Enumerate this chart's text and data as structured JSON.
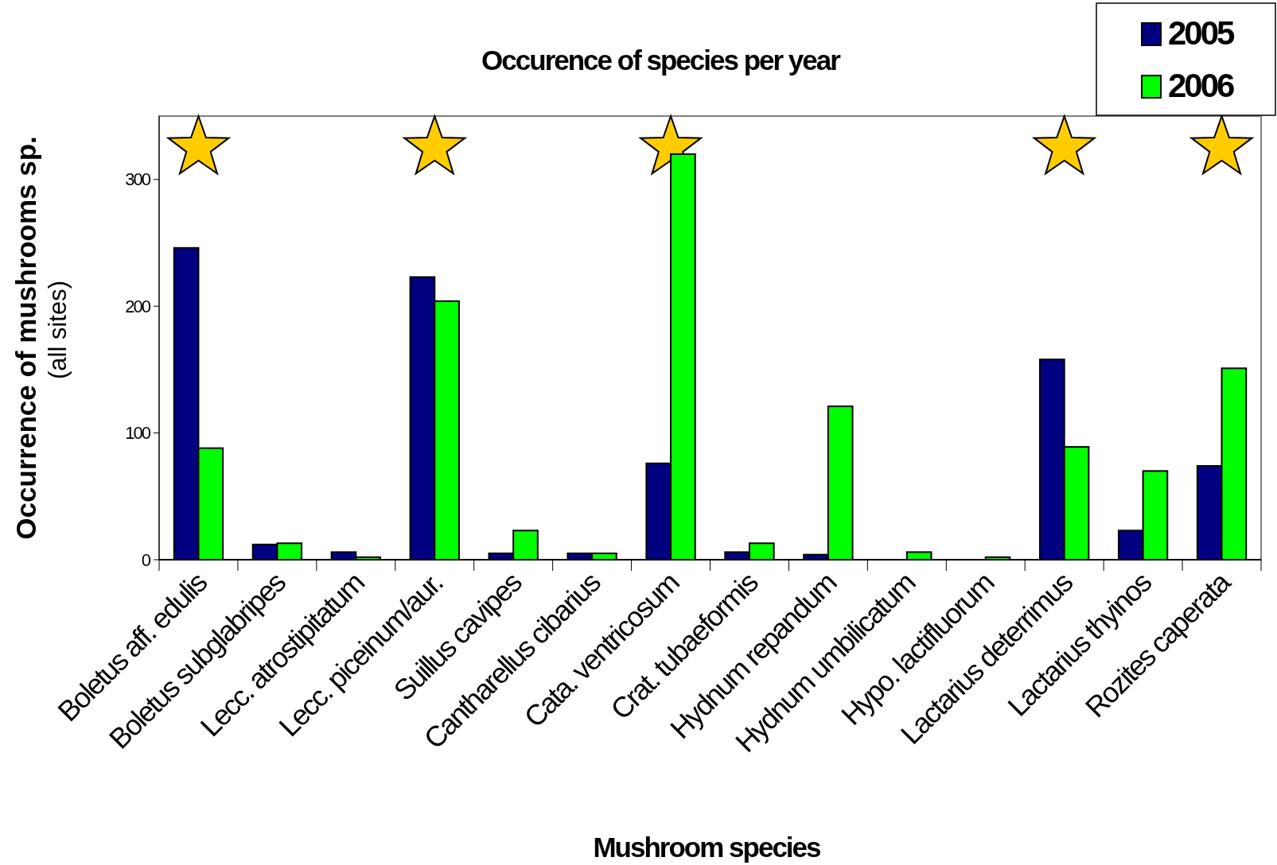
{
  "chart_data": {
    "type": "bar",
    "title": "Occurence of species per year",
    "xlabel": "Mushroom species",
    "ylabel": "Occurrence of mushrooms sp.\n(all sites)",
    "categories": [
      "Boletus aff. edulis",
      "Boletus subglabripes",
      "Lecc. atrostipitatum",
      "Lecc. piceinum/aur.",
      "Suillus cavipes",
      "Cantharellus cibarius",
      "Cata. ventricosum",
      "Crat. tubaeformis",
      "Hydnum repandum",
      "Hydnum umbilicatum",
      "Hypo. lactifluorum",
      "Lactarius deterrimus",
      "Lactarius thyinos",
      "Rozites caperata"
    ],
    "series": [
      {
        "name": "2005",
        "color": "#000080",
        "values": [
          246,
          12,
          6,
          223,
          5,
          5,
          76,
          6,
          4,
          0,
          0,
          158,
          23,
          74
        ]
      },
      {
        "name": "2006",
        "color": "#00ff00",
        "values": [
          88,
          13,
          2,
          204,
          23,
          5,
          320,
          13,
          121,
          6,
          2,
          89,
          70,
          151
        ]
      }
    ],
    "ylim": [
      0,
      350
    ],
    "yticks": [
      0,
      100,
      200,
      300
    ],
    "legend": "top right"
  }
}
